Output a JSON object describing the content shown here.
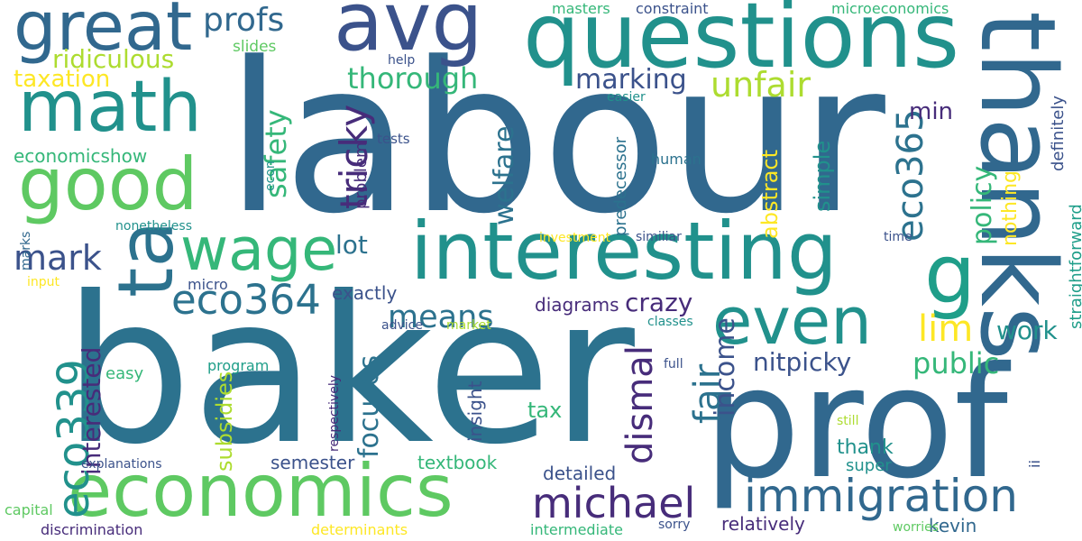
{
  "palette": {
    "purple": "#472c7a",
    "indigo": "#3b528b",
    "blue": "#31688e",
    "teal_blue": "#2c728e",
    "teal": "#21918c",
    "teal_green": "#1f9e89",
    "green": "#35b779",
    "light_green": "#5ec962",
    "yellow_green": "#addc30",
    "yellow": "#fde725"
  },
  "words": [
    {
      "text": "labour",
      "color": "#31688e",
      "rot": 0
    },
    {
      "text": "baker",
      "color": "#2c728e",
      "rot": 0
    },
    {
      "text": "prof",
      "color": "#31688e",
      "rot": 0
    },
    {
      "text": "thanks",
      "color": "#31688e",
      "rot": 90
    },
    {
      "text": "questions",
      "color": "#21918c",
      "rot": 0
    },
    {
      "text": "avg",
      "color": "#3b528b",
      "rot": 0
    },
    {
      "text": "interesting",
      "color": "#21918c",
      "rot": 0
    },
    {
      "text": "economics",
      "color": "#5ec962",
      "rot": 0
    },
    {
      "text": "good",
      "color": "#5ec962",
      "rot": 0
    },
    {
      "text": "math",
      "color": "#21918c",
      "rot": 0
    },
    {
      "text": "ta",
      "color": "#2c728e",
      "rot": -90
    },
    {
      "text": "great",
      "color": "#31688e",
      "rot": 0
    },
    {
      "text": "even",
      "color": "#21918c",
      "rot": 0
    },
    {
      "text": "g",
      "color": "#1f9e89",
      "rot": 0
    },
    {
      "text": "wage",
      "color": "#35b779",
      "rot": 0
    },
    {
      "text": "immigration",
      "color": "#31688e",
      "rot": 0
    },
    {
      "text": "michael",
      "color": "#472c7a",
      "rot": 0
    },
    {
      "text": "eco339",
      "color": "#21918c",
      "rot": -90
    },
    {
      "text": "eco364",
      "color": "#2c728e",
      "rot": 0
    },
    {
      "text": "profs",
      "color": "#31688e",
      "rot": 0
    },
    {
      "text": "tricky",
      "color": "#472c7a",
      "rot": -90
    },
    {
      "text": "unfair",
      "color": "#addc30",
      "rot": 0
    },
    {
      "text": "eco365",
      "color": "#2c728e",
      "rot": -90
    },
    {
      "text": "means",
      "color": "#2c728e",
      "rot": 0
    },
    {
      "text": "dismal",
      "color": "#472c7a",
      "rot": -90
    },
    {
      "text": "fair",
      "color": "#2c728e",
      "rot": -90
    },
    {
      "text": "lim",
      "color": "#fde725",
      "rot": 0
    },
    {
      "text": "mark",
      "color": "#3b528b",
      "rot": 0
    },
    {
      "text": "thorough",
      "color": "#35b779",
      "rot": 0
    },
    {
      "text": "ridiculous",
      "color": "#addc30",
      "rot": 0
    },
    {
      "text": "marking",
      "color": "#3b528b",
      "rot": 0
    },
    {
      "text": "welfare",
      "color": "#2c728e",
      "rot": -90
    },
    {
      "text": "safety",
      "color": "#35b779",
      "rot": -90
    },
    {
      "text": "taxation",
      "color": "#fde725",
      "rot": 0
    },
    {
      "text": "public",
      "color": "#35b779",
      "rot": 0
    },
    {
      "text": "nitpicky",
      "color": "#3b528b",
      "rot": 0
    },
    {
      "text": "income",
      "color": "#3b528b",
      "rot": -90
    },
    {
      "text": "work",
      "color": "#21918c",
      "rot": 0
    },
    {
      "text": "policy",
      "color": "#35b779",
      "rot": -90
    },
    {
      "text": "interested",
      "color": "#472c7a",
      "rot": -90
    },
    {
      "text": "focuses",
      "color": "#2c728e",
      "rot": -90
    },
    {
      "text": "lot",
      "color": "#2c728e",
      "rot": 0
    },
    {
      "text": "abstract",
      "color": "#fde725",
      "rot": -90
    },
    {
      "text": "crazy",
      "color": "#472c7a",
      "rot": 0
    },
    {
      "text": "min",
      "color": "#472c7a",
      "rot": 0
    },
    {
      "text": "simple",
      "color": "#21918c",
      "rot": -90
    },
    {
      "text": "nothing",
      "color": "#fde725",
      "rot": -90
    },
    {
      "text": "subsidies",
      "color": "#addc30",
      "rot": -90
    },
    {
      "text": "tax",
      "color": "#35b779",
      "rot": 0
    },
    {
      "text": "thank",
      "color": "#21918c",
      "rot": 0
    },
    {
      "text": "diagrams",
      "color": "#472c7a",
      "rot": 0
    },
    {
      "text": "economicshow",
      "color": "#35b779",
      "rot": 0
    },
    {
      "text": "exactly",
      "color": "#3b528b",
      "rot": 0
    },
    {
      "text": "textbook",
      "color": "#35b779",
      "rot": 0
    },
    {
      "text": "detailed",
      "color": "#3b528b",
      "rot": 0
    },
    {
      "text": "semester",
      "color": "#3b528b",
      "rot": 0
    },
    {
      "text": "relatively",
      "color": "#472c7a",
      "rot": 0
    },
    {
      "text": "kevin",
      "color": "#31688e",
      "rot": 0
    },
    {
      "text": "super",
      "color": "#21918c",
      "rot": 0
    },
    {
      "text": "insight",
      "color": "#3b528b",
      "rot": -90
    },
    {
      "text": "straightforward",
      "color": "#1f9e89",
      "rot": -90
    },
    {
      "text": "definitely",
      "color": "#3b528b",
      "rot": -90
    },
    {
      "text": "predecessor",
      "color": "#2c728e",
      "rot": -90
    },
    {
      "text": "problem",
      "color": "#472c7a",
      "rot": -90
    },
    {
      "text": "masters",
      "color": "#35b779",
      "rot": 0
    },
    {
      "text": "constraint",
      "color": "#3b528b",
      "rot": 0
    },
    {
      "text": "microeconomics",
      "color": "#35b779",
      "rot": 0
    },
    {
      "text": "slides",
      "color": "#5ec962",
      "rot": 0
    },
    {
      "text": "help",
      "color": "#3b528b",
      "rot": 0
    },
    {
      "text": "easier",
      "color": "#21918c",
      "rot": 0
    },
    {
      "text": "tests",
      "color": "#3b528b",
      "rot": 0
    },
    {
      "text": "human",
      "color": "#2c728e",
      "rot": 0
    },
    {
      "text": "econ",
      "color": "#21918c",
      "rot": -90
    },
    {
      "text": "nonetheless",
      "color": "#21918c",
      "rot": 0
    },
    {
      "text": "investment",
      "color": "#fde725",
      "rot": 0
    },
    {
      "text": "similiar",
      "color": "#3b528b",
      "rot": 0
    },
    {
      "text": "time",
      "color": "#3b528b",
      "rot": 0
    },
    {
      "text": "marks",
      "color": "#31688e",
      "rot": -90
    },
    {
      "text": "input",
      "color": "#fde725",
      "rot": 0
    },
    {
      "text": "micro",
      "color": "#3b528b",
      "rot": 0
    },
    {
      "text": "advice",
      "color": "#3b528b",
      "rot": 0
    },
    {
      "text": "market",
      "color": "#addc30",
      "rot": 0
    },
    {
      "text": "classes",
      "color": "#21918c",
      "rot": 0
    },
    {
      "text": "easy",
      "color": "#35b779",
      "rot": 0
    },
    {
      "text": "program",
      "color": "#1f9e89",
      "rot": 0
    },
    {
      "text": "respectively",
      "color": "#472c7a",
      "rot": -90
    },
    {
      "text": "full",
      "color": "#3b528b",
      "rot": 0
    },
    {
      "text": "still",
      "color": "#addc30",
      "rot": 0
    },
    {
      "text": "ii",
      "color": "#3b528b",
      "rot": -90
    },
    {
      "text": "explanations",
      "color": "#3b528b",
      "rot": 0
    },
    {
      "text": "capital",
      "color": "#5ec962",
      "rot": 0
    },
    {
      "text": "discrimination",
      "color": "#472c7a",
      "rot": 0
    },
    {
      "text": "determinants",
      "color": "#fde725",
      "rot": 0
    },
    {
      "text": "intermediate",
      "color": "#35b779",
      "rot": 0
    },
    {
      "text": "sorry",
      "color": "#3b528b",
      "rot": 0
    },
    {
      "text": "worries",
      "color": "#5ec962",
      "rot": 0
    }
  ]
}
